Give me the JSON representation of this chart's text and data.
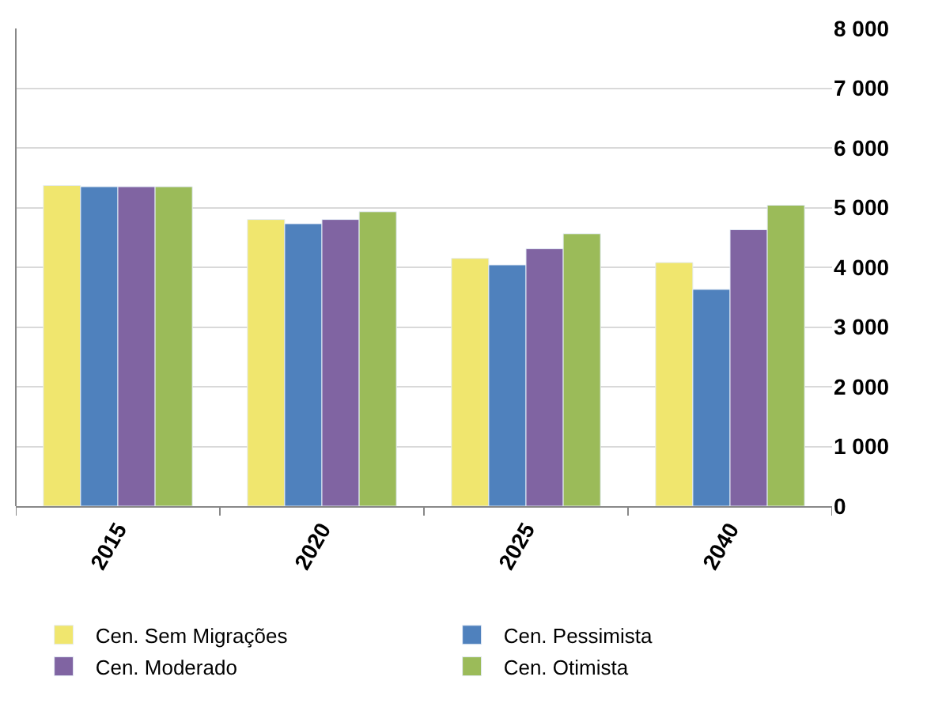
{
  "chart_data": {
    "type": "bar",
    "categories": [
      "2015",
      "2020",
      "2025",
      "2040"
    ],
    "series": [
      {
        "name": "Cen. Sem Migrações",
        "color": "#f0e66e",
        "values": [
          5370,
          4800,
          4150,
          4080
        ]
      },
      {
        "name": "Cen. Pessimista",
        "color": "#4f81bd",
        "values": [
          5350,
          4730,
          4040,
          3630
        ]
      },
      {
        "name": "Cen. Moderado",
        "color": "#8064a2",
        "values": [
          5350,
          4800,
          4310,
          4630
        ]
      },
      {
        "name": "Cen. Otimista",
        "color": "#9bbb59",
        "values": [
          5350,
          4930,
          4560,
          5040
        ]
      }
    ],
    "ylim": [
      0,
      8000
    ],
    "yticks": [
      {
        "value": 0,
        "label": "0"
      },
      {
        "value": 1000,
        "label": "1 000"
      },
      {
        "value": 2000,
        "label": "2 000"
      },
      {
        "value": 3000,
        "label": "3 000"
      },
      {
        "value": 4000,
        "label": "4 000"
      },
      {
        "value": 5000,
        "label": "5 000"
      },
      {
        "value": 6000,
        "label": "6 000"
      },
      {
        "value": 7000,
        "label": "7 000"
      },
      {
        "value": 8000,
        "label": "8 000"
      }
    ],
    "grid": "y",
    "legend": "bottom"
  }
}
